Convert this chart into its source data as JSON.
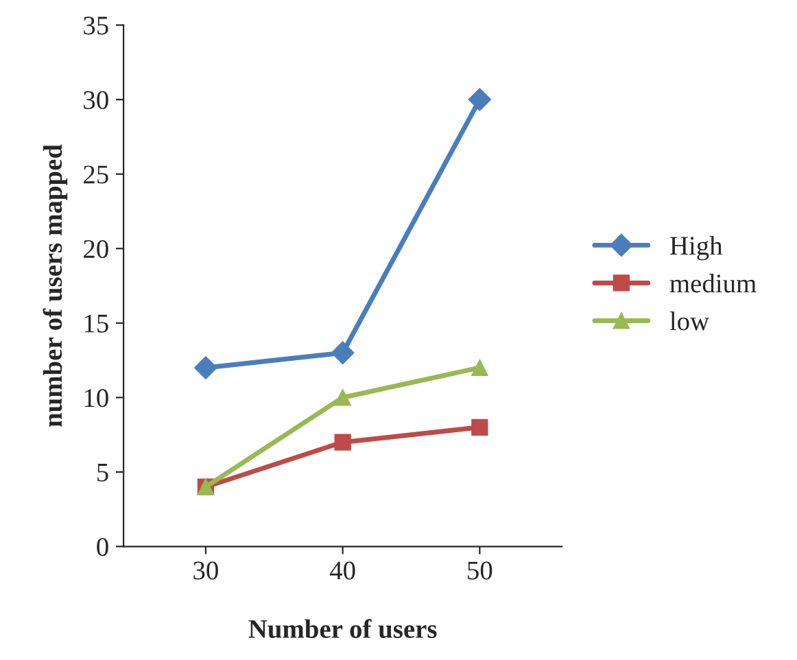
{
  "chart_data": {
    "type": "line",
    "xlabel": "Number of users",
    "ylabel": "number of users mapped",
    "categories": [
      "30",
      "40",
      "50"
    ],
    "series": [
      {
        "name": "High",
        "color": "#4a7ebb",
        "values": [
          12,
          13,
          30
        ],
        "marker": "diamond"
      },
      {
        "name": "medium",
        "color": "#be4b48",
        "values": [
          4,
          7,
          8
        ],
        "marker": "square"
      },
      {
        "name": "low",
        "color": "#98b954",
        "values": [
          4,
          10,
          12
        ],
        "marker": "triangle"
      }
    ],
    "ylim": [
      0,
      35
    ],
    "yticks": [
      0,
      5,
      10,
      15,
      20,
      25,
      30,
      35
    ],
    "grid": false,
    "legend": "right",
    "line_style": "solid"
  }
}
